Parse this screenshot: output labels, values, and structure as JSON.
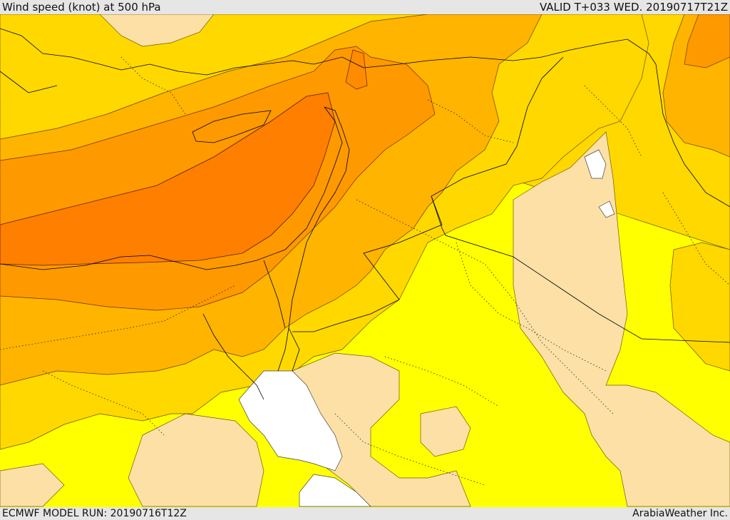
{
  "header": {
    "title": "Wind speed (knot) at 500 hPa",
    "valid": "VALID T+033 WED. 20190717T21Z"
  },
  "footer": {
    "model_run": "ECMWF MODEL RUN: 20190716T12Z",
    "credit": "ArabiaWeather Inc."
  },
  "map": {
    "variable": "wind speed",
    "level": "500 hPa",
    "unit": "knot",
    "shading_colors": [
      "#ffffff",
      "#fde0a6",
      "#ffff00",
      "#ffd800",
      "#ffb400",
      "#ff9900",
      "#ff7f00"
    ],
    "boundary_color": "#000000"
  }
}
